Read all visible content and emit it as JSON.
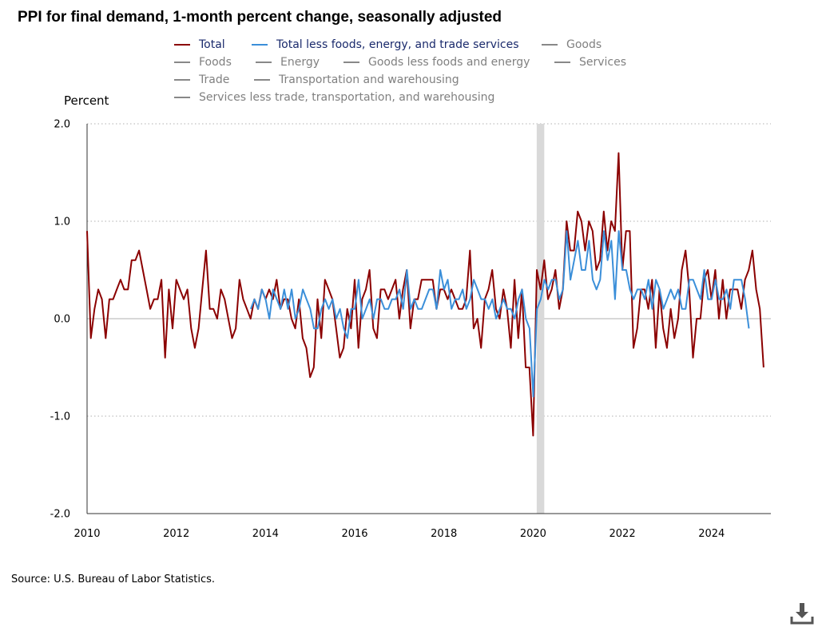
{
  "chart_data": {
    "type": "line",
    "title": "PPI for final demand, 1-month percent change, seasonally adjusted",
    "ylabel": "Percent",
    "xlabel": "",
    "ylim": [
      -2.0,
      2.0
    ],
    "xlim": [
      2010.0,
      2025.33
    ],
    "y_ticks": [
      2.0,
      1.0,
      0.0,
      -1.0,
      -2.0
    ],
    "y_tick_labels": [
      "2.0",
      "1.0",
      "0.0",
      "-1.0",
      "-2.0"
    ],
    "x_ticks": [
      2010,
      2012,
      2014,
      2016,
      2018,
      2020,
      2022,
      2024
    ],
    "x_tick_labels": [
      "2010",
      "2012",
      "2014",
      "2016",
      "2018",
      "2020",
      "2022",
      "2024"
    ],
    "grid": "horizontal dotted",
    "legend_placement": "top",
    "recession_shading": [
      2020.08,
      2020.25
    ],
    "series": [
      {
        "name": "Total",
        "color": "#8b0000",
        "start": 2010.0,
        "step_months": 1,
        "values": [
          0.9,
          -0.2,
          0.1,
          0.3,
          0.2,
          -0.2,
          0.2,
          0.2,
          0.3,
          0.4,
          0.3,
          0.3,
          0.6,
          0.6,
          0.7,
          0.5,
          0.3,
          0.1,
          0.2,
          0.2,
          0.4,
          -0.4,
          0.3,
          -0.1,
          0.4,
          0.3,
          0.2,
          0.3,
          -0.1,
          -0.3,
          -0.1,
          0.3,
          0.7,
          0.1,
          0.1,
          0.0,
          0.3,
          0.2,
          0.0,
          -0.2,
          -0.1,
          0.4,
          0.2,
          0.1,
          0.0,
          0.2,
          0.1,
          0.3,
          0.2,
          0.3,
          0.2,
          0.4,
          0.1,
          0.2,
          0.2,
          0.0,
          -0.1,
          0.2,
          -0.2,
          -0.3,
          -0.6,
          -0.5,
          0.2,
          -0.2,
          0.4,
          0.3,
          0.2,
          -0.1,
          -0.4,
          -0.3,
          0.1,
          -0.1,
          0.4,
          -0.3,
          0.2,
          0.3,
          0.5,
          -0.1,
          -0.2,
          0.3,
          0.3,
          0.2,
          0.3,
          0.4,
          0.0,
          0.3,
          0.5,
          -0.1,
          0.2,
          0.2,
          0.4,
          0.4,
          0.4,
          0.4,
          0.1,
          0.3,
          0.3,
          0.2,
          0.3,
          0.2,
          0.1,
          0.1,
          0.2,
          0.7,
          -0.1,
          0.0,
          -0.3,
          0.2,
          0.3,
          0.5,
          0.1,
          0.0,
          0.3,
          0.1,
          -0.3,
          0.4,
          -0.2,
          0.3,
          -0.5,
          -0.5,
          -1.2,
          0.5,
          0.3,
          0.6,
          0.2,
          0.3,
          0.5,
          0.1,
          0.3,
          1.0,
          0.7,
          0.7,
          1.1,
          1.0,
          0.7,
          1.0,
          0.9,
          0.5,
          0.6,
          1.1,
          0.7,
          1.0,
          0.9,
          1.7,
          0.5,
          0.9,
          0.9,
          -0.3,
          -0.1,
          0.3,
          0.3,
          0.1,
          0.4,
          -0.3,
          0.3,
          -0.1,
          -0.3,
          0.1,
          -0.2,
          0.0,
          0.5,
          0.7,
          0.3,
          -0.4,
          0.0,
          0.0,
          0.4,
          0.5,
          0.2,
          0.5,
          0.0,
          0.4,
          0.0,
          0.3,
          0.3,
          0.3,
          0.1,
          0.4,
          0.5,
          0.7,
          0.3,
          0.1,
          -0.5
        ]
      },
      {
        "name": "Total less foods, energy, and trade services",
        "color": "#3b8fd9",
        "start": 2013.67,
        "step_months": 1,
        "values": [
          0.1,
          0.2,
          0.1,
          0.3,
          0.2,
          0.0,
          0.3,
          0.2,
          0.1,
          0.3,
          0.1,
          0.3,
          0.0,
          0.1,
          0.3,
          0.2,
          0.1,
          -0.1,
          -0.1,
          0.1,
          0.2,
          0.1,
          0.2,
          0.0,
          0.1,
          -0.1,
          -0.2,
          0.1,
          0.1,
          0.4,
          0.0,
          0.1,
          0.2,
          0.0,
          0.2,
          0.2,
          0.1,
          0.1,
          0.2,
          0.2,
          0.3,
          0.1,
          0.5,
          0.1,
          0.2,
          0.1,
          0.1,
          0.2,
          0.3,
          0.3,
          0.1,
          0.5,
          0.3,
          0.4,
          0.1,
          0.2,
          0.2,
          0.3,
          0.1,
          0.2,
          0.4,
          0.3,
          0.2,
          0.2,
          0.1,
          0.2,
          0.0,
          0.1,
          0.2,
          0.1,
          0.1,
          0.0,
          0.2,
          0.3,
          0.0,
          -0.1,
          -0.8,
          0.1,
          0.2,
          0.4,
          0.3,
          0.4,
          0.4,
          0.2,
          0.3,
          0.9,
          0.4,
          0.6,
          0.8,
          0.5,
          0.5,
          0.8,
          0.4,
          0.3,
          0.4,
          0.9,
          0.6,
          0.8,
          0.2,
          0.9,
          0.5,
          0.5,
          0.3,
          0.2,
          0.3,
          0.3,
          0.2,
          0.4,
          0.1,
          0.4,
          0.3,
          0.1,
          0.2,
          0.3,
          0.2,
          0.3,
          0.1,
          0.1,
          0.4,
          0.4,
          0.3,
          0.2,
          0.5,
          0.2,
          0.2,
          0.4,
          0.2,
          0.2,
          0.3,
          0.1,
          0.4,
          0.4,
          0.4,
          0.2,
          -0.1
        ]
      },
      {
        "name": "Goods",
        "color": "#888888"
      },
      {
        "name": "Foods",
        "color": "#888888"
      },
      {
        "name": "Energy",
        "color": "#888888"
      },
      {
        "name": "Goods less foods and energy",
        "color": "#888888"
      },
      {
        "name": "Services",
        "color": "#888888"
      },
      {
        "name": "Trade",
        "color": "#888888"
      },
      {
        "name": "Transportation and warehousing",
        "color": "#888888"
      },
      {
        "name": "Services less trade, transportation, and warehousing",
        "color": "#888888"
      }
    ]
  },
  "source": "Source: U.S. Bureau of Labor Statistics.",
  "download_icon": "download-icon"
}
